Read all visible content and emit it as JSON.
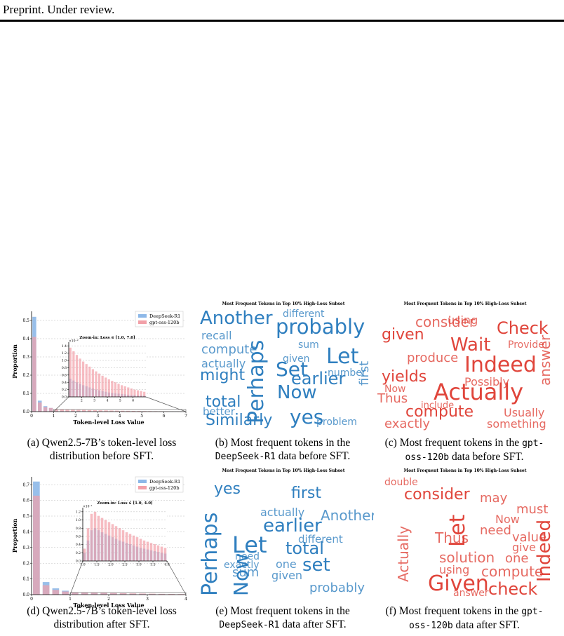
{
  "header": "Preprint. Under review.",
  "chart_data": [
    {
      "type": "histogram",
      "ylabel": "Proportion",
      "xlabel": "Token-level Loss Value",
      "legend": "upper right",
      "grid": true,
      "xlim": [
        0,
        7
      ],
      "xticks": [
        0,
        1,
        2,
        3,
        4,
        5,
        6,
        7
      ],
      "ylim": [
        0,
        0.55
      ],
      "yticks": [
        {
          "value": 0,
          "label": "0.0"
        },
        0.1,
        0.2,
        0.3,
        0.4,
        0.5
      ],
      "bins": [
        0,
        0.25,
        0.5,
        0.75,
        1,
        1.25,
        1.5,
        1.75,
        2,
        2.25,
        2.5,
        2.75,
        3,
        3.25,
        3.5,
        3.75,
        4,
        4.25,
        4.5,
        4.75,
        5,
        5.25,
        5.5,
        5.75,
        6,
        6.25,
        6.5,
        6.75,
        7
      ],
      "series": [
        {
          "name": "DeepSeek-R1",
          "color": "#8db8e8",
          "values": [
            0.52,
            0.06,
            0.03,
            0.02,
            0.005,
            0.0045,
            0.004,
            0.0036,
            0.0032,
            0.0029,
            0.0026,
            0.0023,
            0.002,
            0.0018,
            0.0016,
            0.0014,
            0.0012,
            0.0011,
            0.001,
            0.0009,
            0.0008,
            0.0007,
            0.0006,
            0.0005,
            0.0005,
            0.0004,
            0.0004,
            0.0003
          ]
        },
        {
          "name": "gpt-oss-120b",
          "color": "#f2a0a8",
          "values": [
            0.41,
            0.05,
            0.025,
            0.02,
            0.0135,
            0.0125,
            0.0115,
            0.0105,
            0.0097,
            0.009,
            0.0083,
            0.0076,
            0.007,
            0.0064,
            0.0058,
            0.0053,
            0.0048,
            0.0044,
            0.004,
            0.0036,
            0.0032,
            0.0029,
            0.0026,
            0.0023,
            0.002,
            0.0018,
            0.0016,
            0.0014
          ]
        }
      ],
      "inset": {
        "title": "Zoom-in: Loss ∈ [1.0, 7.0]",
        "y_multiplier": "×10⁻²",
        "xlim": [
          1,
          7
        ],
        "xticks": [
          2,
          3,
          4,
          5,
          6
        ],
        "ylim": [
          0,
          1.5
        ],
        "yticks": [
          {
            "value": 0,
            "label": "0.0"
          },
          0.2,
          0.4,
          0.6,
          0.8,
          {
            "value": 1,
            "label": "1.0"
          },
          1.2,
          1.4
        ],
        "bins": [
          1,
          1.25,
          1.5,
          1.75,
          2,
          2.25,
          2.5,
          2.75,
          3,
          3.25,
          3.5,
          3.75,
          4,
          4.25,
          4.5,
          4.75,
          5,
          5.25,
          5.5,
          5.75,
          6,
          6.25,
          6.5,
          6.75,
          7
        ],
        "series": [
          {
            "color": "#8db8e8",
            "values": [
              0.5,
              0.45,
              0.4,
              0.36,
              0.32,
              0.29,
              0.26,
              0.23,
              0.2,
              0.18,
              0.16,
              0.14,
              0.12,
              0.11,
              0.1,
              0.09,
              0.08,
              0.07,
              0.06,
              0.05,
              0.05,
              0.04,
              0.04,
              0.03
            ]
          },
          {
            "color": "#f2a0a8",
            "values": [
              1.35,
              1.25,
              1.15,
              1.05,
              0.97,
              0.9,
              0.83,
              0.76,
              0.7,
              0.64,
              0.58,
              0.53,
              0.48,
              0.44,
              0.4,
              0.36,
              0.32,
              0.29,
              0.26,
              0.23,
              0.2,
              0.18,
              0.16,
              0.14
            ]
          }
        ]
      }
    },
    {
      "type": "histogram",
      "ylabel": "Proportion",
      "xlabel": "Token-level Loss Value",
      "legend": "upper right",
      "grid": true,
      "xlim": [
        0,
        4
      ],
      "xticks": [
        0,
        1,
        2,
        3,
        4
      ],
      "ylim": [
        0,
        0.75
      ],
      "yticks": [
        {
          "value": 0,
          "label": "0.0"
        },
        0.1,
        0.2,
        0.3,
        0.4,
        0.5,
        0.6,
        0.7
      ],
      "bins": [
        0,
        0.25,
        0.5,
        0.75,
        1,
        1.25,
        1.5,
        1.75,
        2,
        2.25,
        2.5,
        2.75,
        3,
        3.25,
        3.5,
        3.75,
        4
      ],
      "series": [
        {
          "name": "DeepSeek-R1",
          "color": "#8db8e8",
          "values": [
            0.72,
            0.08,
            0.04,
            0.025,
            0.012,
            0.011,
            0.01,
            0.009,
            0.008,
            0.007,
            0.006,
            0.005,
            0.004,
            0.0035,
            0.003,
            0.0025
          ]
        },
        {
          "name": "gpt-oss-120b",
          "color": "#f2a0a8",
          "values": [
            0.63,
            0.06,
            0.03,
            0.02,
            0.014,
            0.013,
            0.012,
            0.011,
            0.01,
            0.009,
            0.008,
            0.007,
            0.006,
            0.005,
            0.0045,
            0.004
          ]
        }
      ],
      "inset": {
        "title": "Zoom-in: Loss ∈ [1.0, 4.0]",
        "y_multiplier": "×10⁻¹",
        "xlim": [
          1,
          4
        ],
        "xticks": [
          {
            "value": 1,
            "label": "1.0"
          },
          1.5,
          {
            "value": 2,
            "label": "2.0"
          },
          2.5,
          {
            "value": 3,
            "label": "3.0"
          },
          3.5,
          {
            "value": 4,
            "label": "4.0"
          }
        ],
        "ylim": [
          0,
          1.3
        ],
        "yticks": [
          {
            "value": 0,
            "label": "0.0"
          },
          0.2,
          0.4,
          0.6,
          0.8,
          {
            "value": 1,
            "label": "1.0"
          },
          1.2
        ],
        "bins": [
          1,
          1.125,
          1.25,
          1.375,
          1.5,
          1.625,
          1.75,
          1.875,
          2,
          2.125,
          2.25,
          2.375,
          2.5,
          2.625,
          2.75,
          2.875,
          3,
          3.125,
          3.25,
          3.375,
          3.5,
          3.625,
          3.75,
          3.875,
          4
        ],
        "series": [
          {
            "color": "#8db8e8",
            "values": [
              0.2,
              0.5,
              0.75,
              0.8,
              0.75,
              0.7,
              0.66,
              0.62,
              0.58,
              0.54,
              0.5,
              0.47,
              0.44,
              0.41,
              0.38,
              0.35,
              0.32,
              0.3,
              0.28,
              0.26,
              0.24,
              0.22,
              0.2,
              0.18
            ]
          },
          {
            "color": "#f2a0a8",
            "values": [
              0.3,
              0.8,
              1.15,
              1.2,
              1.1,
              1.05,
              1,
              0.95,
              0.9,
              0.85,
              0.8,
              0.75,
              0.7,
              0.66,
              0.62,
              0.58,
              0.54,
              0.5,
              0.47,
              0.44,
              0.41,
              0.38,
              0.35,
              0.32
            ]
          }
        ]
      }
    }
  ],
  "wordclouds": [
    {
      "title": "Most Frequent Tokens in Top 10% High-Loss Subset",
      "color": "#2f7fbf",
      "words": [
        "Another",
        "probably",
        "Perhaps",
        "Set",
        "Let",
        "Now",
        "yes",
        "earlier",
        "Similarly",
        "total",
        "might",
        "compute",
        "actually",
        "recall",
        "number",
        "given",
        "problem",
        "sum",
        "different",
        "first",
        "better"
      ]
    },
    {
      "title": "Most Frequent Tokens in Top 10% High-Loss Subset",
      "color": "#e0453b",
      "words": [
        "Actually",
        "Indeed",
        "Wait",
        "Check",
        "given",
        "consider",
        "yields",
        "compute",
        "exactly",
        "Thus",
        "Now",
        "produce",
        "using",
        "answer",
        "Possibly",
        "something",
        "Usually",
        "include",
        "Provide"
      ]
    },
    {
      "title": "Most Frequent Tokens in Top 10% High-Loss Subset",
      "color": "#2f7fbf",
      "words": [
        "Let",
        "Perhaps",
        "Now",
        "earlier",
        "total",
        "set",
        "first",
        "yes",
        "Another",
        "actually",
        "given",
        "probably",
        "sum",
        "exactly",
        "one",
        "need",
        "different"
      ]
    },
    {
      "title": "Most Frequent Tokens in Top 10% High-Loss Subset",
      "color": "#e0453b",
      "words": [
        "Given",
        "Let",
        "check",
        "Indeed",
        "consider",
        "Thus",
        "solution",
        "compute",
        "need",
        "Now",
        "value",
        "must",
        "one",
        "give",
        "Actually",
        "using",
        "may",
        "double",
        "answer"
      ]
    }
  ],
  "captions": [
    {
      "text": "(a) Qwen2.5-7B’s token-level loss distribution before SFT."
    },
    {
      "text": "(b) Most frequent tokens in the",
      "code": "DeepSeek-R1",
      "rest": "data before SFT."
    },
    {
      "text": "(c) Most frequent tokens in the",
      "code": "gpt-oss-120b",
      "rest": "data before SFT."
    },
    {
      "text": "(d) Qwen2.5-7B’s token-level loss distribution after SFT."
    },
    {
      "text": "(e) Most frequent tokens in the",
      "code": "DeepSeek-R1",
      "rest": "data after SFT."
    },
    {
      "text": "(f) Most frequent tokens in the",
      "code": "gpt-oss-120b",
      "rest": "data after SFT."
    }
  ]
}
